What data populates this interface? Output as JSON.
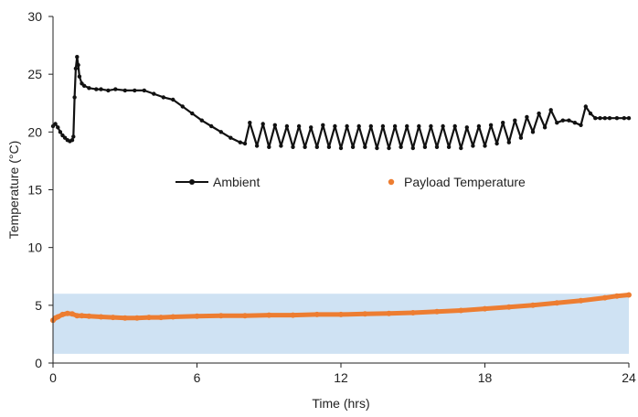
{
  "chart_data": {
    "type": "line",
    "xlabel": "Time (hrs)",
    "ylabel": "Temperature (°C)",
    "xlim": [
      0,
      24
    ],
    "ylim": [
      0,
      30
    ],
    "x_ticks": [
      0,
      6,
      12,
      18,
      24
    ],
    "y_ticks": [
      0,
      5,
      10,
      15,
      20,
      25,
      30
    ],
    "grid": false,
    "legend_position": "center",
    "band": {
      "y_range": [
        0.8,
        6.0
      ],
      "color": "#cfe2f3"
    },
    "series": [
      {
        "name": "Ambient",
        "color": "#111111",
        "marker": "circle",
        "x": [
          0,
          0.1,
          0.2,
          0.3,
          0.4,
          0.5,
          0.6,
          0.7,
          0.8,
          0.85,
          0.9,
          0.95,
          1.0,
          1.05,
          1.1,
          1.2,
          1.3,
          1.5,
          1.8,
          2.0,
          2.3,
          2.6,
          3.0,
          3.4,
          3.8,
          4.2,
          4.6,
          5.0,
          5.4,
          5.8,
          6.2,
          6.6,
          7.0,
          7.4,
          7.8,
          8.0,
          8.2,
          8.5,
          8.75,
          9.0,
          9.25,
          9.5,
          9.75,
          10.0,
          10.25,
          10.5,
          10.75,
          11.0,
          11.25,
          11.5,
          11.75,
          12.0,
          12.25,
          12.5,
          12.75,
          13.0,
          13.25,
          13.5,
          13.75,
          14.0,
          14.25,
          14.5,
          14.75,
          15.0,
          15.25,
          15.5,
          15.75,
          16.0,
          16.25,
          16.5,
          16.75,
          17.0,
          17.25,
          17.5,
          17.75,
          18.0,
          18.25,
          18.5,
          18.75,
          19.0,
          19.25,
          19.5,
          19.75,
          20.0,
          20.25,
          20.5,
          20.75,
          21.0,
          21.25,
          21.5,
          21.75,
          22.0,
          22.2,
          22.4,
          22.6,
          22.8,
          23.0,
          23.2,
          23.5,
          23.8,
          24.0
        ],
        "y": [
          20.5,
          20.7,
          20.4,
          20.0,
          19.7,
          19.5,
          19.3,
          19.2,
          19.3,
          19.6,
          23.0,
          25.5,
          26.5,
          25.8,
          24.8,
          24.2,
          24.0,
          23.8,
          23.7,
          23.7,
          23.6,
          23.7,
          23.6,
          23.6,
          23.6,
          23.3,
          23.0,
          22.8,
          22.2,
          21.6,
          21.0,
          20.5,
          20.0,
          19.5,
          19.1,
          19.0,
          20.8,
          18.8,
          20.7,
          18.7,
          20.6,
          18.8,
          20.5,
          18.7,
          20.5,
          18.7,
          20.4,
          18.7,
          20.6,
          18.7,
          20.5,
          18.6,
          20.5,
          18.7,
          20.5,
          18.7,
          20.5,
          18.6,
          20.5,
          18.6,
          20.5,
          18.7,
          20.5,
          18.6,
          20.5,
          18.7,
          20.5,
          18.7,
          20.5,
          18.7,
          20.5,
          18.6,
          20.4,
          18.8,
          20.5,
          18.8,
          20.6,
          19.0,
          20.8,
          19.1,
          21.0,
          19.5,
          21.3,
          20.0,
          21.6,
          20.4,
          21.9,
          20.8,
          21.0,
          21.0,
          20.8,
          20.6,
          22.2,
          21.6,
          21.2,
          21.2,
          21.2,
          21.2,
          21.2,
          21.2,
          21.2
        ]
      },
      {
        "name": "Payload Temperature",
        "color": "#ed7d31",
        "marker": "circle",
        "x": [
          0,
          0.1,
          0.2,
          0.4,
          0.6,
          0.8,
          1.0,
          1.2,
          1.5,
          2.0,
          2.5,
          3.0,
          3.5,
          4.0,
          4.5,
          5.0,
          6.0,
          7.0,
          8.0,
          9.0,
          10.0,
          11.0,
          12.0,
          13.0,
          14.0,
          15.0,
          16.0,
          17.0,
          18.0,
          19.0,
          20.0,
          21.0,
          22.0,
          23.0,
          23.5,
          24.0
        ],
        "y": [
          3.7,
          3.9,
          4.0,
          4.2,
          4.3,
          4.25,
          4.1,
          4.1,
          4.05,
          4.0,
          3.95,
          3.9,
          3.9,
          3.95,
          3.95,
          4.0,
          4.05,
          4.1,
          4.1,
          4.15,
          4.15,
          4.2,
          4.2,
          4.25,
          4.3,
          4.35,
          4.45,
          4.55,
          4.7,
          4.85,
          5.0,
          5.2,
          5.4,
          5.65,
          5.8,
          5.9
        ]
      }
    ]
  }
}
